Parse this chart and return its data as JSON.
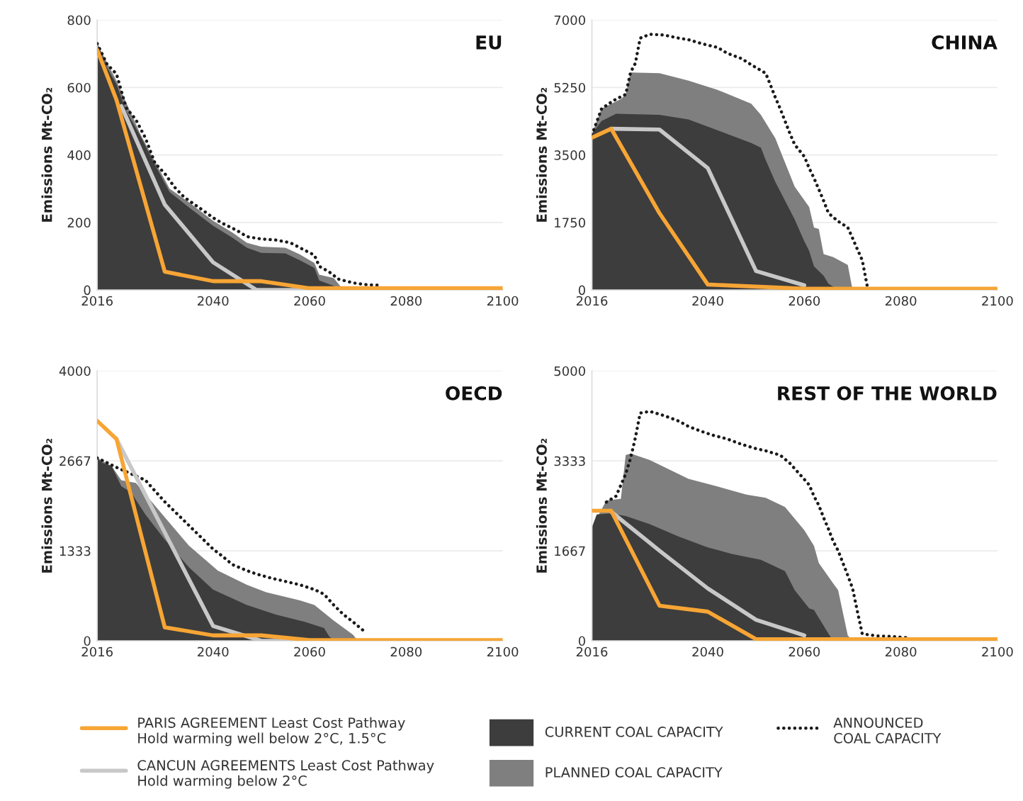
{
  "chart_data": [
    {
      "type": "line",
      "title": "EU",
      "ylabel": "Emissions Mt-CO₂",
      "xlim": [
        2016,
        2100
      ],
      "xticks": [
        2016,
        2040,
        2060,
        2080,
        2100
      ],
      "ylim": [
        0,
        800
      ],
      "yticks": [
        0,
        200,
        400,
        600,
        800
      ],
      "grid": "y",
      "legend": "bottom",
      "series": [
        {
          "name": "PARIS AGREEMENT Least Cost Pathway\nHold warming well below 2°C, 1.5°C",
          "color": "#f7a535",
          "x": [
            2016,
            2020,
            2030,
            2040,
            2050,
            2060,
            2100
          ],
          "values": [
            712,
            563,
            54,
            26,
            26,
            5,
            5
          ]
        },
        {
          "name": "CANCUN AGREEMENTS Least Cost Pathway\nHold warming below 2°C",
          "color": "#c8c8c8",
          "x": [
            2021,
            2030,
            2040,
            2049,
            2060
          ],
          "values": [
            545,
            253,
            82,
            0,
            0
          ]
        },
        {
          "name": "CURRENT COAL CAPACITY",
          "type": "area",
          "color": "#3d3d3d",
          "x": [
            2016,
            2018,
            2020,
            2022,
            2025,
            2028,
            2031,
            2035,
            2040,
            2044,
            2047,
            2050,
            2055,
            2058,
            2061,
            2062,
            2065,
            2066
          ],
          "values": [
            730,
            660,
            610,
            530,
            455,
            370,
            290,
            245,
            190,
            155,
            125,
            110,
            108,
            88,
            65,
            28,
            12,
            0
          ]
        },
        {
          "name": "PLANNED COAL CAPACITY",
          "type": "area",
          "color": "#7f7f7f",
          "x": [
            2016,
            2020,
            2025,
            2028,
            2031,
            2035,
            2040,
            2044,
            2047,
            2050,
            2055,
            2058,
            2061,
            2062,
            2065,
            2067
          ],
          "values": [
            730,
            620,
            460,
            380,
            300,
            260,
            205,
            170,
            140,
            128,
            125,
            105,
            80,
            45,
            35,
            0
          ]
        },
        {
          "name": "ANNOUNCED\nCOAL CAPACITY",
          "line_style": "dotted",
          "color": "#1a1a1a",
          "x": [
            2016,
            2018,
            2020,
            2022,
            2024,
            2026,
            2028,
            2030,
            2032,
            2034,
            2036,
            2038,
            2040,
            2042,
            2045,
            2047,
            2050,
            2053,
            2056,
            2058,
            2061,
            2062,
            2064,
            2066,
            2069,
            2072,
            2074
          ],
          "values": [
            730,
            670,
            640,
            540,
            505,
            450,
            375,
            345,
            305,
            275,
            255,
            235,
            214,
            197,
            176,
            158,
            151,
            148,
            140,
            125,
            103,
            70,
            54,
            32,
            21,
            15,
            14
          ]
        }
      ]
    },
    {
      "type": "line",
      "title": "CHINA",
      "ylabel": "Emissions Mt-CO₂",
      "xlim": [
        2016,
        2100
      ],
      "xticks": [
        2016,
        2040,
        2060,
        2080,
        2100
      ],
      "ylim": [
        0,
        7000
      ],
      "yticks": [
        0,
        1750,
        3500,
        5250,
        7000
      ],
      "grid": "y",
      "series": [
        {
          "color": "#f7a535",
          "x": [
            2016,
            2020,
            2030,
            2040,
            2060,
            2100
          ],
          "values": [
            3950,
            4180,
            1990,
            140,
            30,
            30
          ]
        },
        {
          "color": "#c8c8c8",
          "x": [
            2020,
            2030,
            2040,
            2050,
            2060
          ],
          "values": [
            4180,
            4160,
            3160,
            490,
            120
          ]
        },
        {
          "type": "area",
          "color": "#3d3d3d",
          "x": [
            2016,
            2018,
            2021,
            2030,
            2036,
            2042,
            2049,
            2051,
            2052,
            2054,
            2058,
            2060,
            2061,
            2062,
            2064,
            2065,
            2067
          ],
          "values": [
            4050,
            4380,
            4570,
            4540,
            4420,
            4140,
            3810,
            3690,
            3370,
            2800,
            1830,
            1260,
            1010,
            610,
            370,
            160,
            0
          ]
        },
        {
          "type": "area",
          "color": "#7f7f7f",
          "x": [
            2016,
            2018,
            2022,
            2023,
            2024,
            2030,
            2036,
            2042,
            2049,
            2051,
            2054,
            2058,
            2061,
            2062,
            2063,
            2064,
            2066,
            2069,
            2070
          ],
          "values": [
            4050,
            4700,
            4950,
            5070,
            5640,
            5620,
            5430,
            5190,
            4830,
            4540,
            3930,
            2680,
            2150,
            1620,
            1580,
            930,
            850,
            650,
            0
          ]
        },
        {
          "line_style": "dotted",
          "color": "#1a1a1a",
          "x": [
            2016,
            2018,
            2020,
            2021,
            2023,
            2024,
            2025,
            2026,
            2028,
            2031,
            2034,
            2036,
            2039,
            2042,
            2044,
            2047,
            2049,
            2052,
            2053,
            2054,
            2055,
            2056,
            2057,
            2058,
            2060,
            2061,
            2062,
            2063,
            2064,
            2065,
            2067,
            2069,
            2070,
            2071,
            2072,
            2073
          ],
          "values": [
            4020,
            4700,
            4870,
            4950,
            5070,
            5640,
            5880,
            6530,
            6630,
            6610,
            6530,
            6490,
            6380,
            6290,
            6140,
            6000,
            5840,
            5620,
            5310,
            4990,
            4700,
            4380,
            4060,
            3770,
            3460,
            3160,
            2900,
            2610,
            2310,
            1990,
            1780,
            1620,
            1340,
            1050,
            770,
            120
          ]
        }
      ]
    },
    {
      "type": "line",
      "title": "OECD",
      "ylabel": "Emissions Mt-CO₂",
      "xlim": [
        2016,
        2100
      ],
      "xticks": [
        2016,
        2040,
        2060,
        2080,
        2100
      ],
      "ylim": [
        0,
        4000
      ],
      "yticks": [
        0,
        1333,
        2667,
        4000
      ],
      "grid": "y",
      "series": [
        {
          "color": "#f7a535",
          "x": [
            2016,
            2020,
            2030,
            2040,
            2050,
            2060,
            2100
          ],
          "values": [
            3260,
            2990,
            200,
            80,
            80,
            10,
            10
          ]
        },
        {
          "color": "#c8c8c8",
          "x": [
            2020,
            2040,
            2050,
            2060
          ],
          "values": [
            2990,
            220,
            0,
            0
          ]
        },
        {
          "type": "area",
          "color": "#3d3d3d",
          "x": [
            2016,
            2017,
            2019,
            2021,
            2023,
            2026,
            2030,
            2035,
            2040,
            2047,
            2053,
            2059,
            2063,
            2064,
            2065
          ],
          "values": [
            2710,
            2640,
            2590,
            2290,
            2200,
            1870,
            1500,
            1090,
            760,
            530,
            390,
            280,
            190,
            70,
            0
          ]
        },
        {
          "type": "area",
          "color": "#7f7f7f",
          "x": [
            2016,
            2019,
            2021,
            2024,
            2030,
            2035,
            2041,
            2047,
            2051,
            2058,
            2061,
            2065,
            2069,
            2070
          ],
          "values": [
            2710,
            2590,
            2380,
            2340,
            1830,
            1410,
            1040,
            830,
            720,
            600,
            530,
            300,
            90,
            0
          ]
        },
        {
          "line_style": "dotted",
          "color": "#1a1a1a",
          "x": [
            2016,
            2018,
            2020,
            2026,
            2028,
            2030,
            2032,
            2034,
            2036,
            2038,
            2040,
            2042,
            2044,
            2047,
            2049,
            2052,
            2055,
            2058,
            2061,
            2063,
            2065,
            2067,
            2069,
            2071
          ],
          "values": [
            2710,
            2640,
            2570,
            2380,
            2220,
            2060,
            1920,
            1780,
            1640,
            1500,
            1360,
            1250,
            1130,
            1040,
            990,
            930,
            880,
            830,
            760,
            690,
            530,
            390,
            280,
            160
          ]
        }
      ]
    },
    {
      "type": "line",
      "title": "REST OF THE WORLD",
      "ylabel": "Emissions Mt-CO₂",
      "xlim": [
        2016,
        2100
      ],
      "xticks": [
        2016,
        2040,
        2060,
        2080,
        2100
      ],
      "ylim": [
        0,
        5000
      ],
      "yticks": [
        0,
        1667,
        3333,
        5000
      ],
      "grid": "y",
      "series": [
        {
          "color": "#f7a535",
          "x": [
            2016,
            2020,
            2030,
            2040,
            2050,
            2100
          ],
          "values": [
            2410,
            2410,
            650,
            540,
            30,
            30
          ]
        },
        {
          "color": "#c8c8c8",
          "x": [
            2020,
            2030,
            2040,
            2050,
            2060
          ],
          "values": [
            2390,
            1670,
            970,
            390,
            100
          ]
        },
        {
          "type": "area",
          "color": "#3d3d3d",
          "x": [
            2016,
            2017,
            2020,
            2023,
            2028,
            2034,
            2040,
            2045,
            2051,
            2056,
            2058,
            2061,
            2062,
            2064,
            2065,
            2066
          ],
          "values": [
            2100,
            2340,
            2360,
            2310,
            2160,
            1930,
            1730,
            1610,
            1500,
            1290,
            940,
            600,
            570,
            280,
            130,
            0
          ]
        },
        {
          "type": "area",
          "color": "#7f7f7f",
          "x": [
            2016,
            2019,
            2022,
            2023,
            2024,
            2028,
            2036,
            2042,
            2048,
            2052,
            2056,
            2060,
            2062,
            2063,
            2066,
            2067,
            2069,
            2070
          ],
          "values": [
            2100,
            2600,
            2630,
            3440,
            3470,
            3350,
            3000,
            2860,
            2710,
            2650,
            2480,
            2050,
            1760,
            1440,
            1060,
            940,
            100,
            0
          ]
        },
        {
          "line_style": "dotted",
          "color": "#1a1a1a",
          "x": [
            2019,
            2021,
            2023,
            2024,
            2025,
            2026,
            2028,
            2031,
            2034,
            2036,
            2039,
            2041,
            2044,
            2047,
            2050,
            2052,
            2055,
            2057,
            2059,
            2061,
            2062,
            2063,
            2064,
            2065,
            2066,
            2067,
            2068,
            2069,
            2070,
            2071,
            2072,
            2075,
            2078,
            2081
          ],
          "values": [
            2570,
            2680,
            3090,
            3380,
            3760,
            4220,
            4250,
            4170,
            4070,
            3970,
            3870,
            3810,
            3740,
            3640,
            3560,
            3520,
            3440,
            3290,
            3090,
            2890,
            2680,
            2510,
            2280,
            2070,
            1840,
            1670,
            1440,
            1210,
            970,
            540,
            130,
            90,
            80,
            60
          ]
        }
      ]
    }
  ]
}
